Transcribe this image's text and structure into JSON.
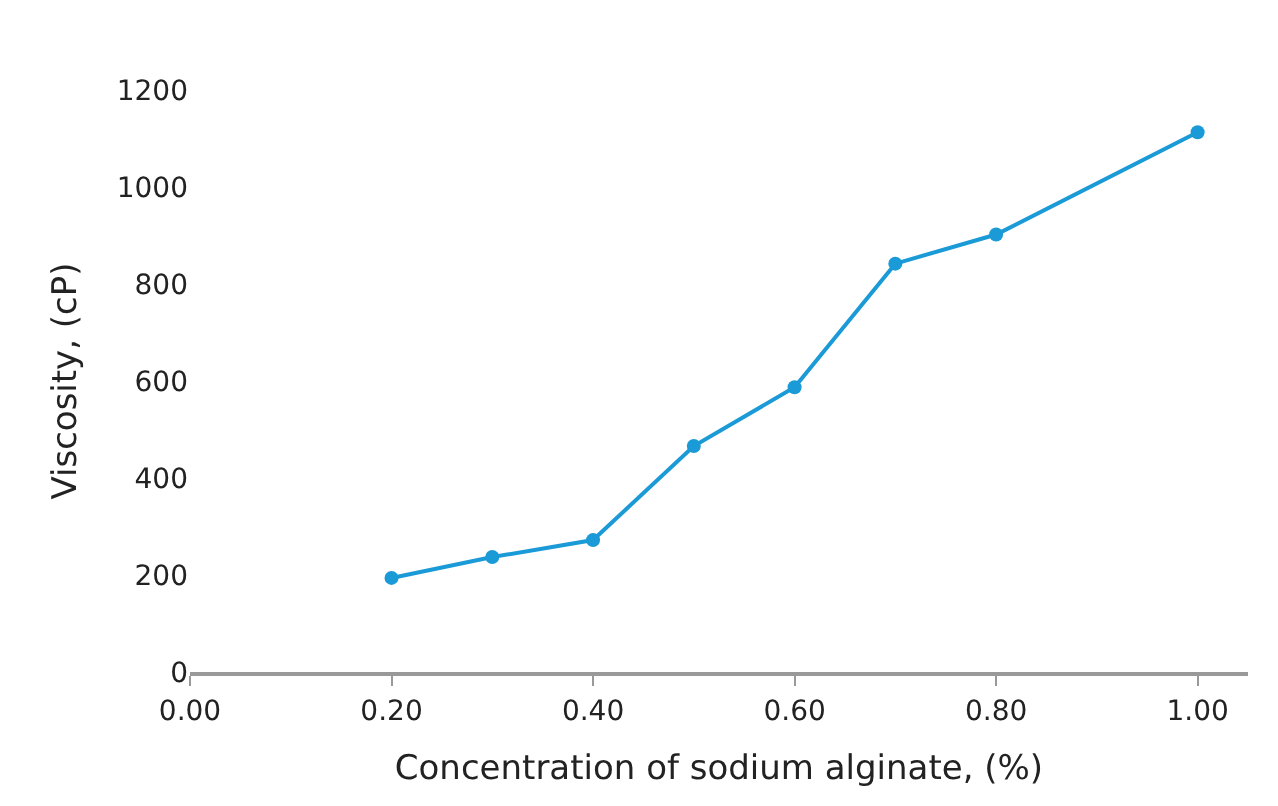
{
  "chart_data": {
    "type": "line",
    "xlabel": "Concentration of sodium alginate, (%)",
    "ylabel": "Viscosity, (cP)",
    "x": [
      0.2,
      0.3,
      0.4,
      0.5,
      0.6,
      0.7,
      0.8,
      1.0
    ],
    "series": [
      {
        "color": "#1a9ad6",
        "values": [
          194,
          237,
          272,
          466,
          587,
          842,
          902,
          1113
        ]
      }
    ],
    "xlim": [
      0,
      1.05
    ],
    "xticks": [
      {
        "value": 0,
        "label": "0.00"
      },
      {
        "value": 0.2,
        "label": "0.20"
      },
      {
        "value": 0.4,
        "label": "0.40"
      },
      {
        "value": 0.6,
        "label": "0.60"
      },
      {
        "value": 0.8,
        "label": "0.80"
      },
      {
        "value": 1,
        "label": "1.00"
      }
    ],
    "ylim": [
      0,
      1200
    ],
    "yticks": [
      0,
      200,
      400,
      600,
      800,
      1000,
      1200
    ],
    "legend": false,
    "marker": "circle",
    "line_style": "solid"
  }
}
